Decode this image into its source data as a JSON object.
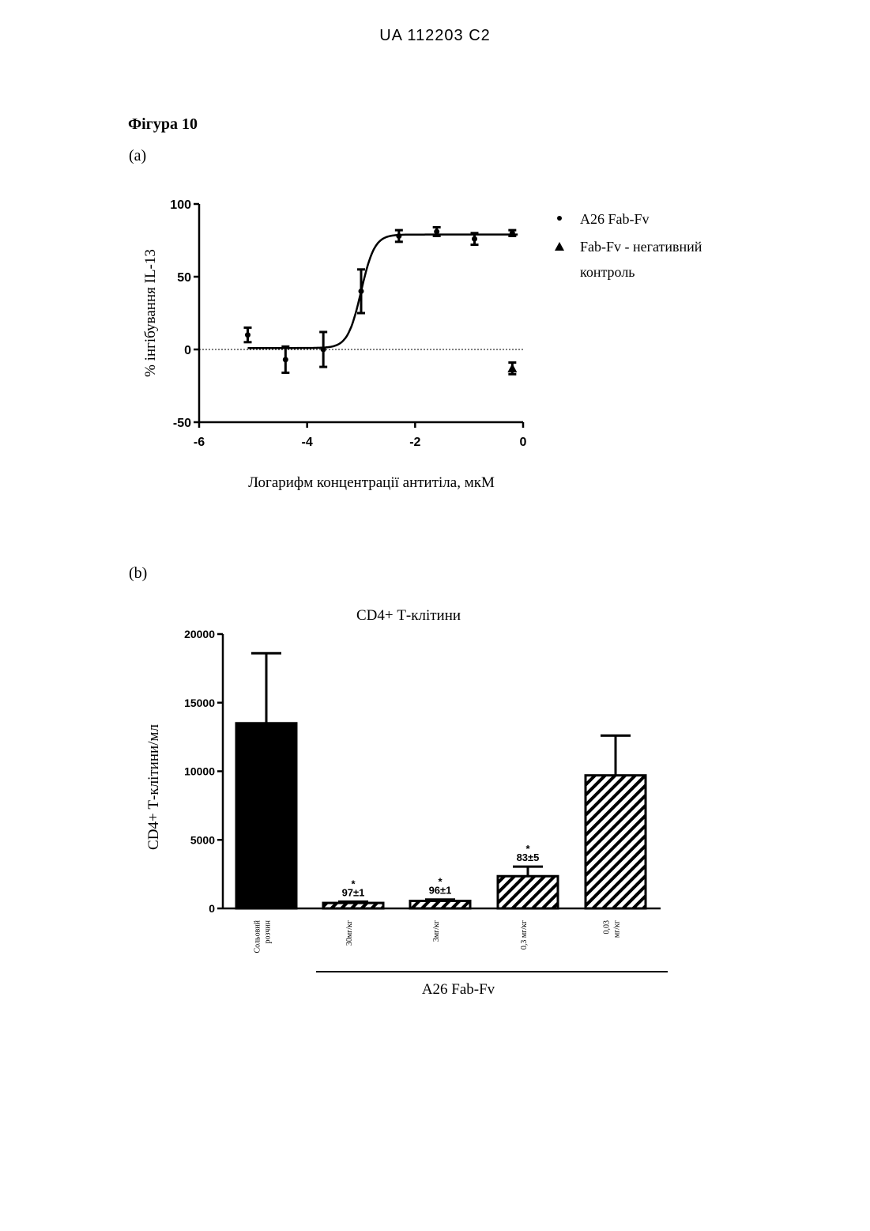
{
  "header": {
    "doc_number": "UA   112203   C2"
  },
  "figure": {
    "title": "Фігура 10",
    "panel_a_label": "(a)",
    "panel_b_label": "(b)"
  },
  "chart_data": [
    {
      "type": "scatter",
      "xlabel": "Логарифм концентрації антитіла, мкМ",
      "ylabel": "% інгібування IL-13",
      "xlim": [
        -6,
        0
      ],
      "ylim": [
        -50,
        100
      ],
      "xticks": [
        -6,
        -4,
        -2,
        0
      ],
      "yticks": [
        -50,
        0,
        50,
        100
      ],
      "reference_line_y": 0,
      "series": [
        {
          "name": "A26 Fab-Fv",
          "marker": "circle",
          "points": [
            {
              "x": -5.1,
              "y": 10,
              "err": 5
            },
            {
              "x": -4.4,
              "y": -7,
              "err": 9
            },
            {
              "x": -3.7,
              "y": 0,
              "err": 12
            },
            {
              "x": -3.0,
              "y": 40,
              "err": 15
            },
            {
              "x": -2.3,
              "y": 78,
              "err": 4
            },
            {
              "x": -1.6,
              "y": 81,
              "err": 3
            },
            {
              "x": -0.9,
              "y": 76,
              "err": 4
            },
            {
              "x": -0.2,
              "y": 80,
              "err": 2
            }
          ],
          "fit": {
            "bottom": 1,
            "top": 79,
            "log_ec50": -3.0,
            "hill": 3.5
          }
        },
        {
          "name": "Fab-Fv - негативний контроль",
          "marker": "triangle",
          "points": [
            {
              "x": -0.2,
              "y": -13,
              "err": 4
            }
          ]
        }
      ]
    },
    {
      "type": "bar",
      "title": "CD4+ Т-клітини",
      "ylabel": "CD4+ Т-клітини/мл",
      "ylim": [
        0,
        20000
      ],
      "yticks": [
        0,
        5000,
        10000,
        15000,
        20000
      ],
      "group_label": "A26 Fab-Fv",
      "bars": [
        {
          "label": [
            "Сольовий",
            "розчин"
          ],
          "value": 13500,
          "err": 5100,
          "fill": "solid"
        },
        {
          "label": [
            "30мг/кг"
          ],
          "value": 400,
          "err": 100,
          "fill": "hatch",
          "annotation": "97±1",
          "star": true
        },
        {
          "label": [
            "3мг/кг"
          ],
          "value": 550,
          "err": 100,
          "fill": "hatch",
          "annotation": "96±1",
          "star": true
        },
        {
          "label": [
            "0,3 мг/кг"
          ],
          "value": 2350,
          "err": 700,
          "fill": "hatch",
          "annotation": "83±5",
          "star": true
        },
        {
          "label": [
            "0,03",
            "мг/кг"
          ],
          "value": 9700,
          "err": 2900,
          "fill": "hatch"
        }
      ]
    }
  ]
}
